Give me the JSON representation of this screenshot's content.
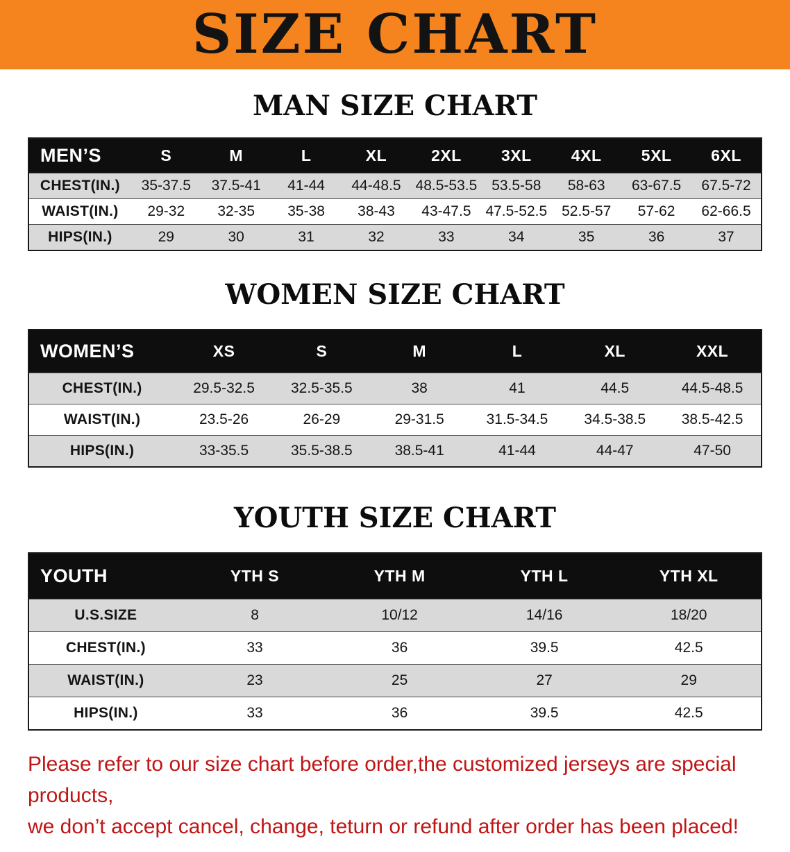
{
  "banner": {
    "title": "SIZE CHART"
  },
  "colors": {
    "banner_bg": "#f5841f",
    "header_bg": "#0e0e0e",
    "row_alt": "#d9d9d9",
    "notice_color": "#c01515"
  },
  "sections": [
    {
      "id": "men",
      "heading": "MAN SIZE CHART",
      "columns": [
        "MEN’S",
        "S",
        "M",
        "L",
        "XL",
        "2XL",
        "3XL",
        "4XL",
        "5XL",
        "6XL"
      ],
      "rows": [
        {
          "label": "CHEST(IN.)",
          "values": [
            "35-37.5",
            "37.5-41",
            "41-44",
            "44-48.5",
            "48.5-53.5",
            "53.5-58",
            "58-63",
            "63-67.5",
            "67.5-72"
          ]
        },
        {
          "label": "WAIST(IN.)",
          "values": [
            "29-32",
            "32-35",
            "35-38",
            "38-43",
            "43-47.5",
            "47.5-52.5",
            "52.5-57",
            "57-62",
            "62-66.5"
          ]
        },
        {
          "label": "HIPS(IN.)",
          "values": [
            "29",
            "30",
            "31",
            "32",
            "33",
            "34",
            "35",
            "36",
            "37"
          ]
        }
      ]
    },
    {
      "id": "women",
      "heading": "WOMEN SIZE CHART",
      "columns": [
        "WOMEN’S",
        "XS",
        "S",
        "M",
        "L",
        "XL",
        "XXL"
      ],
      "rows": [
        {
          "label": "CHEST(IN.)",
          "values": [
            "29.5-32.5",
            "32.5-35.5",
            "38",
            "41",
            "44.5",
            "44.5-48.5"
          ]
        },
        {
          "label": "WAIST(IN.)",
          "values": [
            "23.5-26",
            "26-29",
            "29-31.5",
            "31.5-34.5",
            "34.5-38.5",
            "38.5-42.5"
          ]
        },
        {
          "label": "HIPS(IN.)",
          "values": [
            "33-35.5",
            "35.5-38.5",
            "38.5-41",
            "41-44",
            "44-47",
            "47-50"
          ]
        }
      ]
    },
    {
      "id": "youth",
      "heading": "YOUTH SIZE CHART",
      "columns": [
        "YOUTH",
        "YTH S",
        "YTH M",
        "YTH L",
        "YTH XL"
      ],
      "rows": [
        {
          "label": "U.S.SIZE",
          "values": [
            "8",
            "10/12",
            "14/16",
            "18/20"
          ]
        },
        {
          "label": "CHEST(IN.)",
          "values": [
            "33",
            "36",
            "39.5",
            "42.5"
          ]
        },
        {
          "label": "WAIST(IN.)",
          "values": [
            "23",
            "25",
            "27",
            "29"
          ]
        },
        {
          "label": "HIPS(IN.)",
          "values": [
            "33",
            "36",
            "39.5",
            "42.5"
          ]
        }
      ]
    }
  ],
  "footer": {
    "line1": "Please refer to our size chart before order,the customized jerseys are special products,",
    "line2": "we don’t accept cancel, change, teturn or refund after order has been placed!"
  }
}
